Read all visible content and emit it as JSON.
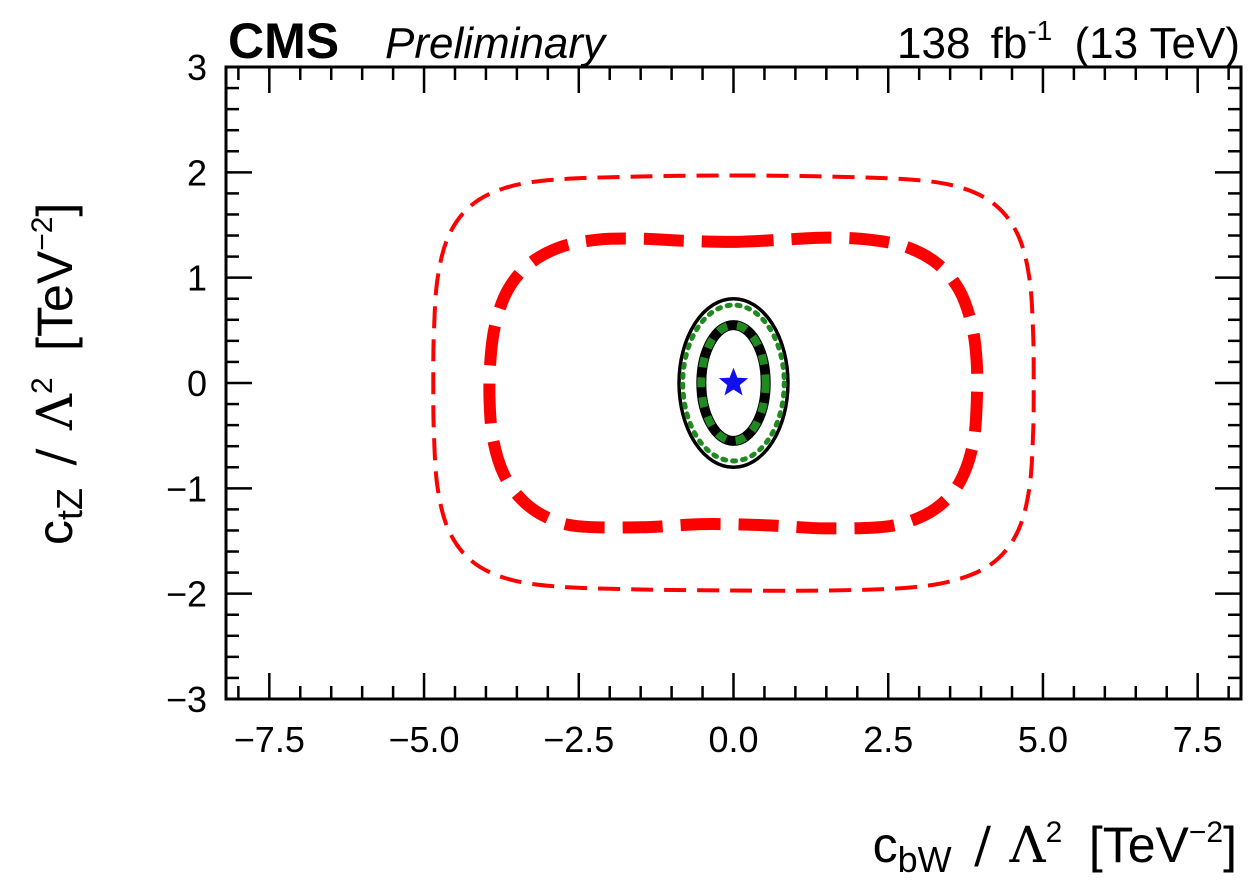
{
  "chart_data": {
    "type": "contour",
    "experiment": "CMS",
    "status": "Preliminary",
    "lumi": {
      "value": "138",
      "unit": "fb",
      "exponent": "-1",
      "energy": "(13 TeV)"
    },
    "xlabel": {
      "symbol": "c",
      "subscript": "bW",
      "slash": "/",
      "lambda": "Λ",
      "power": "2",
      "unit_open": "[TeV",
      "unit_exponent": "−2",
      "unit_close": "]"
    },
    "ylabel": {
      "symbol": "c",
      "subscript": "tZ",
      "slash": "/",
      "lambda": "Λ",
      "power": "2",
      "unit_open": "[TeV",
      "unit_exponent": "−2",
      "unit_close": "]"
    },
    "xlim": [
      -8.2,
      8.2
    ],
    "ylim": [
      -3,
      3
    ],
    "xticks": [
      -7.5,
      -5.0,
      -2.5,
      0.0,
      2.5,
      5.0,
      7.5
    ],
    "xtick_labels": [
      "−7.5",
      "−5.0",
      "−2.5",
      "0.0",
      "2.5",
      "5.0",
      "7.5"
    ],
    "yticks": [
      -3,
      -2,
      -1,
      0,
      1,
      2,
      3
    ],
    "ytick_labels": [
      "−3",
      "−2",
      "−1",
      "0",
      "1",
      "2",
      "3"
    ],
    "x_minor_step": 0.5,
    "y_minor_step": 0.2,
    "best_fit": {
      "x": 0.0,
      "y": 0.0,
      "marker": "star",
      "color": "#1010ee"
    },
    "contours": [
      {
        "name": "red-outer-95cl",
        "color": "#ff0000",
        "style": "dashed-thin",
        "points": [
          [
            0,
            1.97
          ],
          [
            1.5,
            1.96
          ],
          [
            2.9,
            1.93
          ],
          [
            3.7,
            1.85
          ],
          [
            4.25,
            1.68
          ],
          [
            4.6,
            1.4
          ],
          [
            4.78,
            1.0
          ],
          [
            4.84,
            0.5
          ],
          [
            4.85,
            0.0
          ],
          [
            4.84,
            -0.5
          ],
          [
            4.78,
            -1.0
          ],
          [
            4.6,
            -1.4
          ],
          [
            4.25,
            -1.68
          ],
          [
            3.7,
            -1.85
          ],
          [
            2.9,
            -1.94
          ],
          [
            1.5,
            -1.97
          ],
          [
            0,
            -1.97
          ],
          [
            -1.5,
            -1.96
          ],
          [
            -2.9,
            -1.93
          ],
          [
            -3.7,
            -1.85
          ],
          [
            -4.25,
            -1.68
          ],
          [
            -4.6,
            -1.4
          ],
          [
            -4.78,
            -1.0
          ],
          [
            -4.84,
            -0.5
          ],
          [
            -4.85,
            0.0
          ],
          [
            -4.84,
            0.5
          ],
          [
            -4.78,
            1.0
          ],
          [
            -4.6,
            1.4
          ],
          [
            -4.25,
            1.68
          ],
          [
            -3.7,
            1.85
          ],
          [
            -2.9,
            1.93
          ],
          [
            -1.5,
            1.96
          ],
          [
            0,
            1.97
          ]
        ]
      },
      {
        "name": "red-inner-68cl",
        "color": "#ff0000",
        "style": "dashed-thick",
        "points": [
          [
            0,
            1.34
          ],
          [
            0.8,
            1.36
          ],
          [
            1.5,
            1.38
          ],
          [
            2.2,
            1.36
          ],
          [
            2.8,
            1.29
          ],
          [
            3.3,
            1.13
          ],
          [
            3.65,
            0.88
          ],
          [
            3.85,
            0.55
          ],
          [
            3.93,
            0.2
          ],
          [
            3.93,
            -0.2
          ],
          [
            3.88,
            -0.55
          ],
          [
            3.73,
            -0.85
          ],
          [
            3.5,
            -1.07
          ],
          [
            3.1,
            -1.25
          ],
          [
            2.5,
            -1.36
          ],
          [
            1.5,
            -1.38
          ],
          [
            0.5,
            -1.35
          ],
          [
            -0.5,
            -1.34
          ],
          [
            -1.5,
            -1.37
          ],
          [
            -2.5,
            -1.36
          ],
          [
            -3.0,
            -1.28
          ],
          [
            -3.4,
            -1.12
          ],
          [
            -3.7,
            -0.88
          ],
          [
            -3.88,
            -0.55
          ],
          [
            -3.94,
            -0.2
          ],
          [
            -3.93,
            0.2
          ],
          [
            -3.85,
            0.55
          ],
          [
            -3.65,
            0.88
          ],
          [
            -3.3,
            1.13
          ],
          [
            -2.8,
            1.29
          ],
          [
            -2.2,
            1.36
          ],
          [
            -1.5,
            1.37
          ],
          [
            -0.8,
            1.35
          ],
          [
            0,
            1.34
          ]
        ]
      }
    ],
    "ellipses": [
      {
        "name": "black-outer-solid",
        "color": "#000000",
        "style": "solid",
        "cx": 0.0,
        "cy": 0.0,
        "rx": 0.88,
        "ry": 0.8
      },
      {
        "name": "green-outer-dotted",
        "color": "#208a20",
        "style": "dotted",
        "cx": 0.0,
        "cy": 0.0,
        "rx": 0.82,
        "ry": 0.74
      },
      {
        "name": "black-inner-solid",
        "color": "#000000",
        "style": "solid-thick",
        "cx": 0.0,
        "cy": 0.0,
        "rx": 0.52,
        "ry": 0.55
      },
      {
        "name": "green-inner-dotted",
        "color": "#208a20",
        "style": "dotted-thick",
        "cx": 0.0,
        "cy": 0.0,
        "rx": 0.52,
        "ry": 0.55
      }
    ]
  }
}
